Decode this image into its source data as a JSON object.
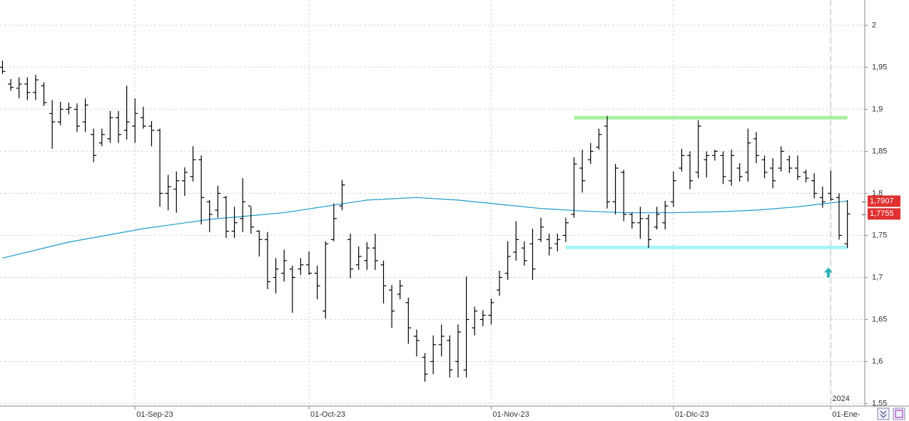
{
  "chart_data": {
    "type": "ohlc",
    "x": [
      0,
      1,
      2,
      3,
      4,
      5,
      6,
      7,
      8,
      9,
      10,
      11,
      12,
      13,
      14,
      15,
      16,
      17,
      18,
      19,
      20,
      21,
      22,
      23,
      24,
      25,
      26,
      27,
      28,
      29,
      30,
      31,
      32,
      33,
      34,
      35,
      36,
      37,
      38,
      39,
      40,
      41,
      42,
      43,
      44,
      45,
      46,
      47,
      48,
      49,
      50,
      51,
      52,
      53,
      54,
      55,
      56,
      57,
      58,
      59,
      60,
      61,
      62,
      63,
      64,
      65,
      66,
      67,
      68,
      69,
      70,
      71,
      72,
      73,
      74,
      75,
      76,
      77,
      78,
      79,
      80,
      81,
      82,
      83,
      84,
      85,
      86,
      87,
      88,
      89,
      90,
      91,
      92,
      93,
      94,
      95,
      96,
      97,
      98,
      99,
      100,
      101,
      102
    ],
    "open": [
      1.95,
      1.93,
      1.925,
      1.93,
      1.92,
      1.928,
      1.895,
      1.885,
      1.9,
      1.9,
      1.885,
      1.87,
      1.86,
      1.865,
      1.89,
      1.875,
      1.88,
      1.89,
      1.88,
      1.875,
      1.8,
      1.805,
      1.815,
      1.82,
      1.84,
      1.79,
      1.78,
      1.795,
      1.755,
      1.77,
      1.785,
      1.755,
      1.745,
      1.7,
      1.705,
      1.71,
      1.71,
      1.715,
      1.705,
      1.66,
      1.745,
      1.785,
      1.745,
      1.715,
      1.72,
      1.735,
      1.715,
      1.685,
      1.68,
      1.67,
      1.63,
      1.605,
      1.6,
      1.62,
      1.625,
      1.6,
      1.59,
      1.64,
      1.65,
      1.655,
      1.685,
      1.705,
      1.73,
      1.735,
      1.74,
      1.745,
      1.745,
      1.74,
      1.75,
      1.775,
      1.83,
      1.84,
      1.855,
      1.88,
      1.79,
      1.825,
      1.775,
      1.765,
      1.77,
      1.76,
      1.765,
      1.79,
      1.83,
      1.845,
      1.825,
      1.84,
      1.845,
      1.845,
      1.815,
      1.83,
      1.825,
      1.865,
      1.84,
      1.83,
      1.83,
      1.84,
      1.83,
      1.825,
      1.815,
      1.795,
      1.8,
      1.795,
      1.74
    ],
    "high": [
      1.958,
      1.936,
      1.938,
      1.938,
      1.941,
      1.932,
      1.911,
      1.909,
      1.908,
      1.907,
      1.913,
      1.877,
      1.877,
      1.898,
      1.898,
      1.928,
      1.913,
      1.903,
      1.886,
      1.877,
      1.822,
      1.826,
      1.831,
      1.856,
      1.845,
      1.792,
      1.809,
      1.797,
      1.784,
      1.818,
      1.784,
      1.756,
      1.754,
      1.723,
      1.733,
      1.714,
      1.723,
      1.731,
      1.714,
      1.743,
      1.788,
      1.816,
      1.752,
      1.737,
      1.742,
      1.752,
      1.72,
      1.691,
      1.697,
      1.676,
      1.638,
      1.61,
      1.631,
      1.644,
      1.631,
      1.644,
      1.701,
      1.665,
      1.661,
      1.675,
      1.708,
      1.743,
      1.767,
      1.743,
      1.758,
      1.771,
      1.752,
      1.752,
      1.771,
      1.843,
      1.852,
      1.86,
      1.877,
      1.892,
      1.835,
      1.828,
      1.777,
      1.784,
      1.775,
      1.784,
      1.791,
      1.826,
      1.853,
      1.85,
      1.887,
      1.85,
      1.852,
      1.85,
      1.852,
      1.836,
      1.877,
      1.873,
      1.845,
      1.842,
      1.856,
      1.845,
      1.845,
      1.828,
      1.824,
      1.808,
      1.827,
      1.8,
      1.792
    ],
    "low": [
      1.942,
      1.922,
      1.913,
      1.911,
      1.911,
      1.904,
      1.853,
      1.881,
      1.894,
      1.873,
      1.873,
      1.837,
      1.856,
      1.86,
      1.86,
      1.864,
      1.86,
      1.877,
      1.856,
      1.784,
      1.78,
      1.777,
      1.797,
      1.814,
      1.763,
      1.754,
      1.771,
      1.747,
      1.747,
      1.754,
      1.752,
      1.725,
      1.686,
      1.681,
      1.695,
      1.658,
      1.703,
      1.703,
      1.674,
      1.651,
      1.743,
      1.78,
      1.699,
      1.709,
      1.709,
      1.709,
      1.669,
      1.64,
      1.674,
      1.621,
      1.606,
      1.576,
      1.585,
      1.606,
      1.581,
      1.581,
      1.581,
      1.631,
      1.642,
      1.644,
      1.678,
      1.697,
      1.72,
      1.714,
      1.697,
      1.742,
      1.726,
      1.731,
      1.742,
      1.771,
      1.801,
      1.835,
      1.852,
      1.782,
      1.775,
      1.767,
      1.758,
      1.746,
      1.735,
      1.757,
      1.757,
      1.784,
      1.826,
      1.805,
      1.818,
      1.819,
      1.839,
      1.811,
      1.809,
      1.814,
      1.814,
      1.836,
      1.818,
      1.806,
      1.826,
      1.824,
      1.816,
      1.813,
      1.794,
      1.783,
      1.791,
      1.745,
      1.735
    ],
    "close": [
      1.945,
      1.926,
      1.93,
      1.92,
      1.935,
      1.908,
      1.885,
      1.9,
      1.902,
      1.88,
      1.905,
      1.845,
      1.87,
      1.89,
      1.87,
      1.885,
      1.895,
      1.88,
      1.875,
      1.8,
      1.808,
      1.815,
      1.825,
      1.84,
      1.795,
      1.775,
      1.8,
      1.755,
      1.765,
      1.79,
      1.76,
      1.745,
      1.695,
      1.71,
      1.72,
      1.7,
      1.715,
      1.705,
      1.69,
      1.74,
      1.77,
      1.81,
      1.71,
      1.725,
      1.735,
      1.72,
      1.69,
      1.66,
      1.69,
      1.64,
      1.625,
      1.585,
      1.62,
      1.63,
      1.59,
      1.635,
      1.65,
      1.66,
      1.655,
      1.67,
      1.7,
      1.725,
      1.745,
      1.72,
      1.71,
      1.76,
      1.735,
      1.745,
      1.765,
      1.835,
      1.815,
      1.85,
      1.87,
      1.79,
      1.83,
      1.775,
      1.765,
      1.77,
      1.745,
      1.775,
      1.785,
      1.815,
      1.845,
      1.815,
      1.88,
      1.845,
      1.85,
      1.82,
      1.845,
      1.82,
      1.86,
      1.845,
      1.825,
      1.815,
      1.85,
      1.83,
      1.82,
      1.818,
      1.8,
      1.79,
      1.793,
      1.75,
      1.7755
    ],
    "bar_color": "#000000",
    "moving_average": {
      "color": "#1a9bc8",
      "x": [
        0,
        8,
        17,
        25,
        34,
        40,
        44,
        50,
        55,
        60,
        65,
        70,
        75,
        81,
        86,
        91,
        96,
        102
      ],
      "values": [
        1.723,
        1.742,
        1.758,
        1.769,
        1.777,
        1.786,
        1.792,
        1.795,
        1.792,
        1.787,
        1.782,
        1.779,
        1.777,
        1.777,
        1.778,
        1.78,
        1.784,
        1.791
      ]
    },
    "hlines": [
      {
        "value": 1.89,
        "x": [
          69,
          102
        ],
        "color": "#a8f0a0"
      },
      {
        "value": 1.7356,
        "x": [
          68,
          102
        ],
        "color": "#a8f4f4"
      }
    ],
    "arrow": {
      "x": 99.7,
      "value": 1.705,
      "color": "#2bb5b5"
    },
    "year_marker": {
      "x": 100,
      "label": "2024"
    },
    "price_labels": [
      {
        "value": 1.7907,
        "label": "1,7907"
      },
      {
        "value": 1.7755,
        "label": "1,7755"
      }
    ],
    "price_label_color": "#e03030",
    "xlim": [
      -0.3,
      104.1
    ],
    "xticks": [
      {
        "value": 16,
        "label": "01-Sep-23"
      },
      {
        "value": 37,
        "label": "01-Oct-23"
      },
      {
        "value": 59,
        "label": "01-Nov-23"
      },
      {
        "value": 81,
        "label": "01-Dic-23"
      },
      {
        "value": 100,
        "label": "01-Ene-"
      }
    ],
    "ylim": [
      1.547,
      2.03
    ],
    "yticks": [
      {
        "value": 2,
        "label": "2"
      },
      {
        "value": 1.95,
        "label": "1,95"
      },
      {
        "value": 1.9,
        "label": "1,9"
      },
      {
        "value": 1.85,
        "label": "1,85"
      },
      {
        "value": 1.8,
        "label": "1,8"
      },
      {
        "value": 1.75,
        "label": "1,75"
      },
      {
        "value": 1.7,
        "label": "1,7"
      },
      {
        "value": 1.65,
        "label": "1,65"
      },
      {
        "value": 1.6,
        "label": "1,6"
      },
      {
        "value": 1.55,
        "label": "1,55"
      }
    ],
    "grid": true
  }
}
